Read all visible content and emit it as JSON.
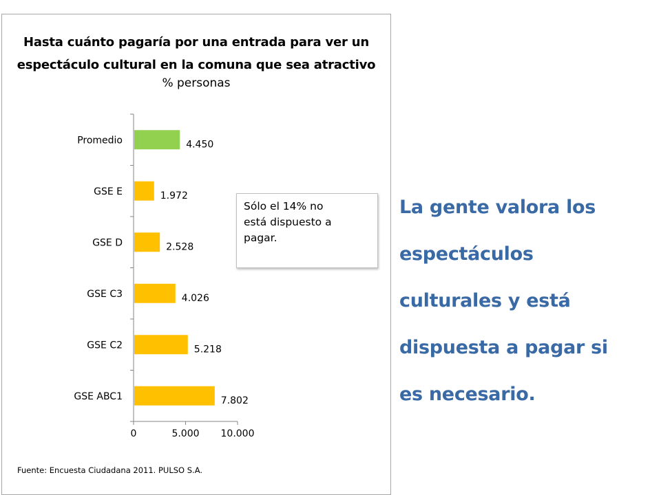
{
  "chart_data": {
    "type": "bar",
    "orientation": "horizontal",
    "title_line1": "Hasta cuánto pagaría por una entrada para ver un",
    "title_line2": "espectáculo cultural en la comuna que sea atractivo",
    "subtitle": "% personas",
    "categories": [
      "Promedio",
      "GSE E",
      "GSE D",
      "GSE C3",
      "GSE C2",
      "GSE ABC1"
    ],
    "values": [
      4450,
      1972,
      2528,
      4026,
      5218,
      7802
    ],
    "data_labels": [
      "4.450",
      "1.972",
      "2.528",
      "4.026",
      "5.218",
      "7.802"
    ],
    "bar_colors": [
      "#92d050",
      "#ffc000",
      "#ffc000",
      "#ffc000",
      "#ffc000",
      "#ffc000"
    ],
    "xlim": [
      0,
      10000
    ],
    "x_ticks": [
      0,
      5000,
      10000
    ],
    "x_tick_labels": [
      "0",
      "5.000",
      "10.000"
    ],
    "grid": false,
    "legend": "none"
  },
  "note": {
    "lines": [
      "Sólo el 14% no",
      "está dispuesto a",
      "pagar."
    ]
  },
  "source": "Fuente: Encuesta Ciudadana 2011. PULSO S.A.",
  "side_text": {
    "lines": [
      "La gente valora los",
      "espectáculos",
      "culturales y está",
      "dispuesta a pagar si",
      "es necesario."
    ],
    "color": "#3a6aa5"
  }
}
